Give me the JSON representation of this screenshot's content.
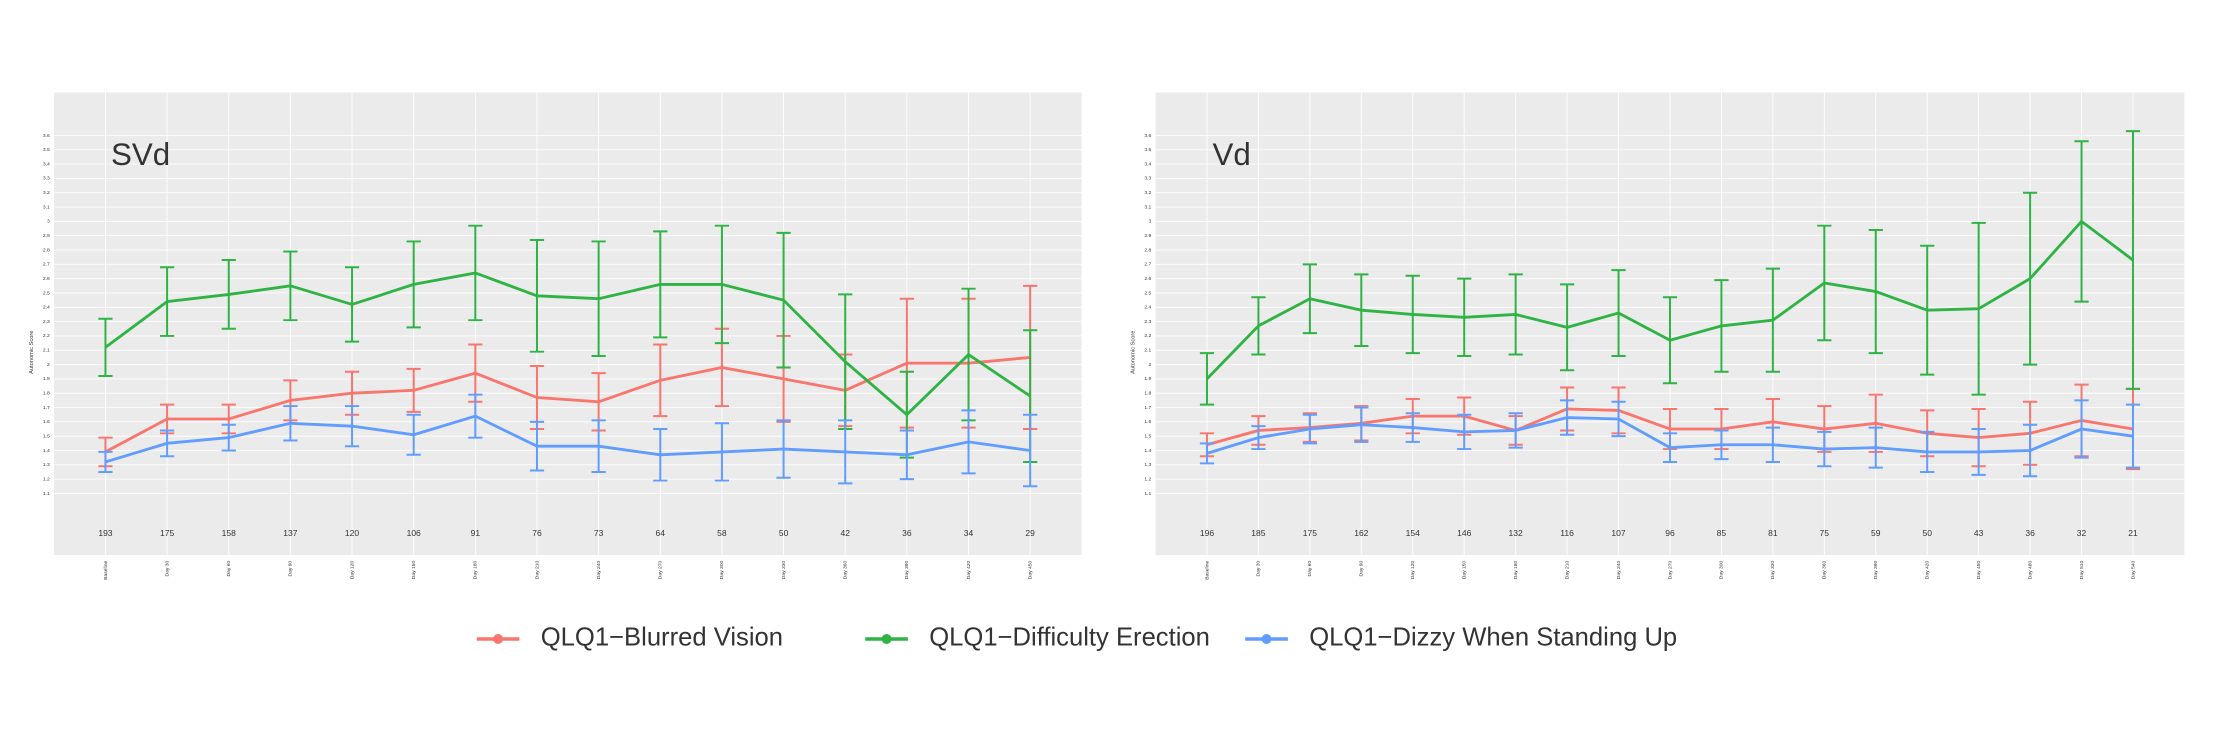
{
  "chart_data": [
    {
      "type": "line",
      "title": "SVd",
      "y_label": "Autonomic Score",
      "categories": [
        "Baseline",
        "Day 30",
        "Day 60",
        "Day 90",
        "Day 120",
        "Day 150",
        "Day 180",
        "Day 210",
        "Day 240",
        "Day 270",
        "Day 300",
        "Day 330",
        "Day 360",
        "Day 390",
        "Day 420",
        "Day 450"
      ],
      "counts": [
        193,
        175,
        158,
        137,
        120,
        106,
        91,
        76,
        73,
        64,
        58,
        50,
        42,
        36,
        34,
        29
      ],
      "ylim": [
        0.67,
        3.9
      ],
      "yticks": [
        1.1,
        1.2,
        1.3,
        1.4,
        1.5,
        1.6,
        1.7,
        1.8,
        1.9,
        2,
        2.1,
        2.2,
        2.3,
        2.4,
        2.5,
        2.6,
        2.7,
        2.8,
        2.9,
        3,
        3.1,
        3.2,
        3.3,
        3.4,
        3.5,
        3.6
      ],
      "grid": true,
      "series": [
        {
          "name": "QLQ1−Blurred Vision",
          "color": "#f8766d",
          "values": [
            1.39,
            1.62,
            1.62,
            1.75,
            1.8,
            1.82,
            1.94,
            1.77,
            1.74,
            1.89,
            1.98,
            1.9,
            1.82,
            2.01,
            2.01,
            2.05
          ],
          "errors": [
            0.1,
            0.1,
            0.1,
            0.14,
            0.15,
            0.15,
            0.2,
            0.22,
            0.2,
            0.25,
            0.27,
            0.3,
            0.25,
            0.45,
            0.45,
            0.5
          ]
        },
        {
          "name": "QLQ1−Difficulty Erection",
          "color": "#2fb344",
          "values": [
            2.12,
            2.44,
            2.49,
            2.55,
            2.42,
            2.56,
            2.64,
            2.48,
            2.46,
            2.56,
            2.56,
            2.45,
            2.02,
            1.65,
            2.07,
            1.78
          ],
          "errors": [
            0.2,
            0.24,
            0.24,
            0.24,
            0.26,
            0.3,
            0.33,
            0.39,
            0.4,
            0.37,
            0.41,
            0.47,
            0.47,
            0.3,
            0.46,
            0.46
          ]
        },
        {
          "name": "QLQ1−Dizzy When Standing Up",
          "color": "#619cff",
          "values": [
            1.32,
            1.45,
            1.49,
            1.59,
            1.57,
            1.51,
            1.64,
            1.43,
            1.43,
            1.37,
            1.39,
            1.41,
            1.39,
            1.37,
            1.46,
            1.4
          ],
          "errors": [
            0.07,
            0.09,
            0.09,
            0.12,
            0.14,
            0.14,
            0.15,
            0.17,
            0.18,
            0.18,
            0.2,
            0.2,
            0.22,
            0.17,
            0.22,
            0.25
          ]
        }
      ]
    },
    {
      "type": "line",
      "title": "Vd",
      "y_label": "Autonomic Score",
      "categories": [
        "Baseline",
        "Day 30",
        "Day 60",
        "Day 90",
        "Day 120",
        "Day 150",
        "Day 180",
        "Day 210",
        "Day 240",
        "Day 270",
        "Day 300",
        "Day 330",
        "Day 360",
        "Day 390",
        "Day 420",
        "Day 450",
        "Day 480",
        "Day 510",
        "Day 540"
      ],
      "counts": [
        196,
        185,
        175,
        162,
        154,
        146,
        132,
        116,
        107,
        96,
        85,
        81,
        75,
        59,
        50,
        43,
        36,
        32,
        21
      ],
      "ylim": [
        0.67,
        3.9
      ],
      "yticks": [
        1.1,
        1.2,
        1.3,
        1.4,
        1.5,
        1.6,
        1.7,
        1.8,
        1.9,
        2,
        2.1,
        2.2,
        2.3,
        2.4,
        2.5,
        2.6,
        2.7,
        2.8,
        2.9,
        3,
        3.1,
        3.2,
        3.3,
        3.4,
        3.5,
        3.6
      ],
      "grid": true,
      "series": [
        {
          "color": "#f8766d",
          "values": [
            1.44,
            1.54,
            1.56,
            1.59,
            1.64,
            1.64,
            1.54,
            1.69,
            1.68,
            1.55,
            1.55,
            1.6,
            1.55,
            1.59,
            1.52,
            1.49,
            1.52,
            1.61,
            1.55
          ],
          "errors": [
            0.08,
            0.1,
            0.1,
            0.12,
            0.12,
            0.13,
            0.1,
            0.15,
            0.16,
            0.14,
            0.14,
            0.16,
            0.16,
            0.2,
            0.16,
            0.2,
            0.22,
            0.25,
            0.28
          ]
        },
        {
          "color": "#2fb344",
          "values": [
            1.9,
            2.27,
            2.46,
            2.38,
            2.35,
            2.33,
            2.35,
            2.26,
            2.36,
            2.17,
            2.27,
            2.31,
            2.57,
            2.51,
            2.38,
            2.39,
            2.6,
            3,
            2.73
          ],
          "errors": [
            0.18,
            0.2,
            0.24,
            0.25,
            0.27,
            0.27,
            0.28,
            0.3,
            0.3,
            0.3,
            0.32,
            0.36,
            0.4,
            0.43,
            0.45,
            0.6,
            0.6,
            0.56,
            0.9
          ]
        },
        {
          "color": "#619cff",
          "values": [
            1.38,
            1.49,
            1.55,
            1.58,
            1.56,
            1.53,
            1.54,
            1.63,
            1.62,
            1.42,
            1.44,
            1.44,
            1.41,
            1.42,
            1.39,
            1.39,
            1.4,
            1.55,
            1.5
          ],
          "errors": [
            0.07,
            0.08,
            0.1,
            0.12,
            0.1,
            0.12,
            0.12,
            0.12,
            0.12,
            0.1,
            0.1,
            0.12,
            0.12,
            0.14,
            0.14,
            0.16,
            0.18,
            0.2,
            0.22
          ]
        }
      ]
    }
  ]
}
